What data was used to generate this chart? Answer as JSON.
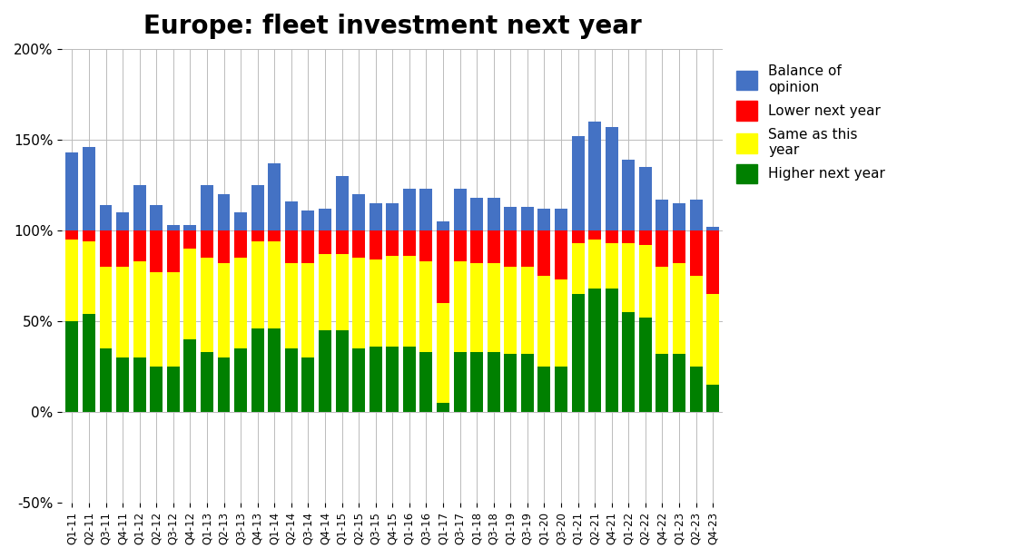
{
  "title": "Europe: fleet investment next year",
  "categories": [
    "Q1-11",
    "Q2-11",
    "Q3-11",
    "Q4-11",
    "Q1-12",
    "Q2-12",
    "Q3-12",
    "Q4-12",
    "Q1-13",
    "Q2-13",
    "Q3-13",
    "Q4-13",
    "Q1-14",
    "Q2-14",
    "Q3-14",
    "Q4-14",
    "Q1-15",
    "Q2-15",
    "Q3-15",
    "Q4-15",
    "Q1-16",
    "Q3-16",
    "Q1-17",
    "Q3-17",
    "Q1-18",
    "Q3-18",
    "Q1-19",
    "Q3-19",
    "Q1-20",
    "Q3-20",
    "Q1-21",
    "Q2-21",
    "Q4-21",
    "Q1-22",
    "Q2-22",
    "Q4-22",
    "Q1-23",
    "Q2-23",
    "Q4-23"
  ],
  "higher": [
    50,
    54,
    35,
    30,
    30,
    25,
    25,
    40,
    33,
    30,
    35,
    46,
    46,
    35,
    30,
    45,
    45,
    35,
    36,
    36,
    36,
    33,
    5,
    33,
    33,
    33,
    32,
    32,
    25,
    25,
    65,
    68,
    68,
    55,
    52,
    32,
    32,
    25,
    15
  ],
  "same": [
    45,
    40,
    45,
    50,
    53,
    52,
    52,
    50,
    52,
    52,
    50,
    48,
    48,
    47,
    52,
    42,
    42,
    50,
    48,
    50,
    50,
    50,
    55,
    50,
    49,
    49,
    48,
    48,
    50,
    48,
    28,
    27,
    25,
    38,
    40,
    48,
    50,
    50,
    50
  ],
  "lower": [
    5,
    6,
    20,
    20,
    17,
    23,
    23,
    10,
    15,
    18,
    15,
    6,
    6,
    18,
    18,
    13,
    13,
    15,
    16,
    14,
    14,
    17,
    40,
    17,
    18,
    18,
    20,
    20,
    25,
    27,
    7,
    5,
    7,
    7,
    8,
    20,
    18,
    25,
    35
  ],
  "balance": [
    43,
    46,
    14,
    10,
    25,
    14,
    3,
    3,
    25,
    20,
    10,
    25,
    37,
    16,
    11,
    12,
    30,
    20,
    15,
    15,
    23,
    23,
    5,
    23,
    18,
    18,
    13,
    13,
    12,
    12,
    52,
    60,
    57,
    39,
    35,
    17,
    15,
    17,
    2
  ],
  "color_higher": "#008000",
  "color_same": "#ffff00",
  "color_lower": "#ff0000",
  "color_balance": "#4472c4",
  "ylim": [
    -50,
    200
  ],
  "yticks": [
    -50,
    0,
    50,
    100,
    150,
    200
  ],
  "ytick_labels": [
    "-50%",
    "0%",
    "50%",
    "100%",
    "150%",
    "200%"
  ]
}
